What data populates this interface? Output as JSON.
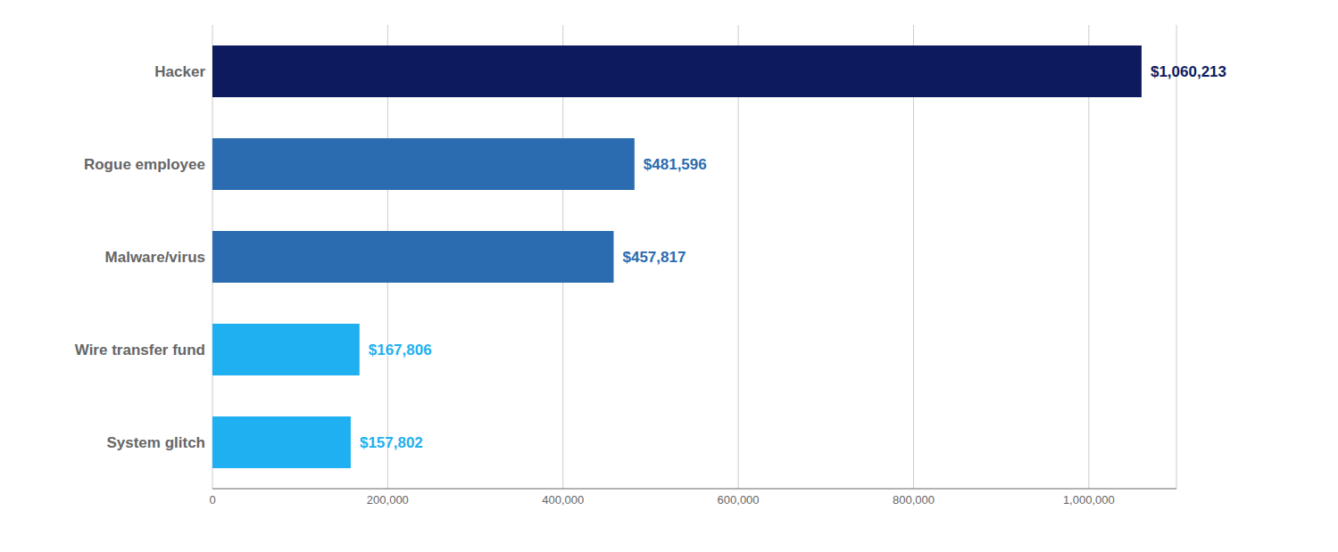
{
  "chart_data": {
    "type": "bar",
    "orientation": "horizontal",
    "categories": [
      "System glitch",
      "Wire transfer fund",
      "Malware/virus",
      "Rogue employee",
      "Hacker"
    ],
    "values": [
      157802,
      167806,
      457817,
      481596,
      1060213
    ],
    "value_labels": [
      "$157,802",
      "$167,806",
      "$457,817",
      "$481,596",
      "$1,060,213"
    ],
    "data_labels": true,
    "colors": [
      "#1EB0F0",
      "#1EB0F0",
      "#2B6CB0",
      "#2B6CB0",
      "#0D1B5E"
    ],
    "xlim": [
      0,
      1100000
    ],
    "xticks": [
      0,
      {
        "value": 200000,
        "label": "200,000"
      },
      {
        "value": 400000,
        "label": "400,000"
      },
      {
        "value": 600000,
        "label": "600,000"
      },
      {
        "value": 800000,
        "label": "800,000"
      },
      {
        "value": 1000000,
        "label": "1,000,000"
      }
    ],
    "grid": true
  }
}
